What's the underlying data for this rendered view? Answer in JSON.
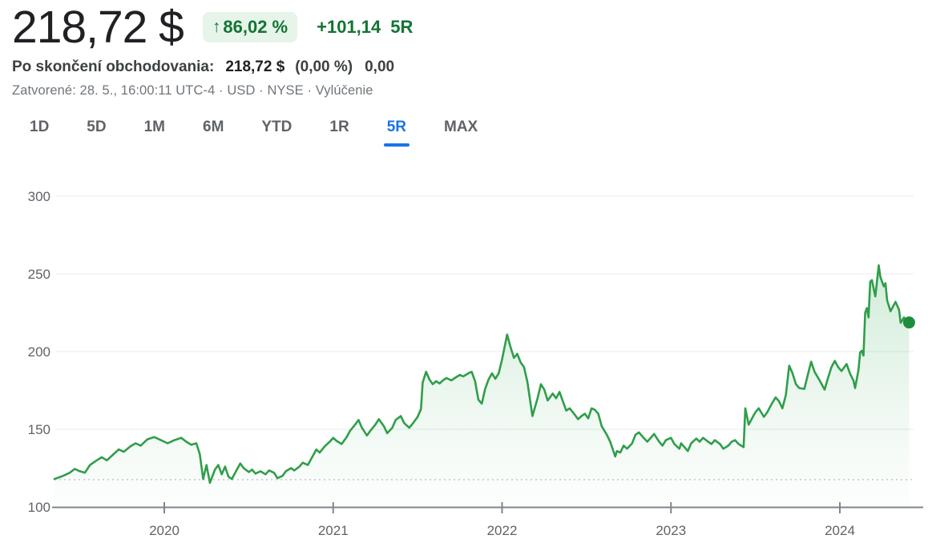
{
  "header": {
    "price": "218,72 $",
    "up_arrow": "↑",
    "change_percent_badge": "86,02 %",
    "change_absolute": "+101,14",
    "range_label": "5R",
    "after_hours": {
      "label": "Po skončení obchodovania:",
      "price": "218,72 $",
      "percent": "(0,00 %)",
      "change": "0,00"
    },
    "status_line": "Zatvorené: 28. 5., 16:00:11 UTC-4 · USD · NYSE · Vylúčenie"
  },
  "tabs": [
    {
      "label": "1D",
      "selected": false
    },
    {
      "label": "5D",
      "selected": false
    },
    {
      "label": "1M",
      "selected": false
    },
    {
      "label": "6M",
      "selected": false
    },
    {
      "label": "YTD",
      "selected": false
    },
    {
      "label": "1R",
      "selected": false
    },
    {
      "label": "5R",
      "selected": true
    },
    {
      "label": "MAX",
      "selected": false
    }
  ],
  "colors": {
    "positive_green": "#137333",
    "badge_bg": "#e6f4ea",
    "line_green": "#2f9e4a",
    "dot_green": "#1e8e3e",
    "tab_active_blue": "#1a73e8",
    "grid": "#e9ebee",
    "axis": "#80868b",
    "label_gray": "#5f6368",
    "baseline_dotted": "#c4c9cd"
  },
  "chart_data": {
    "type": "area",
    "title": "",
    "xlabel": "",
    "ylabel": "",
    "legend": false,
    "grid": true,
    "ylim": [
      100,
      300
    ],
    "xlim": [
      2019.35,
      2024.52
    ],
    "y_ticks": [
      100,
      150,
      200,
      250,
      300
    ],
    "x_ticks": [
      2020,
      2021,
      2022,
      2023,
      2024
    ],
    "x_tick_labels": [
      "2020",
      "2021",
      "2022",
      "2023",
      "2024"
    ],
    "baseline_value": 117.58,
    "last_price": 218.72,
    "points": [
      [
        2019.35,
        118
      ],
      [
        2019.4,
        120
      ],
      [
        2019.44,
        122
      ],
      [
        2019.47,
        124.5
      ],
      [
        2019.5,
        123
      ],
      [
        2019.53,
        122
      ],
      [
        2019.56,
        127
      ],
      [
        2019.6,
        130
      ],
      [
        2019.63,
        132
      ],
      [
        2019.66,
        130
      ],
      [
        2019.7,
        134
      ],
      [
        2019.73,
        137
      ],
      [
        2019.76,
        135.5
      ],
      [
        2019.8,
        139
      ],
      [
        2019.83,
        141
      ],
      [
        2019.86,
        139.5
      ],
      [
        2019.9,
        143.5
      ],
      [
        2019.94,
        145
      ],
      [
        2019.98,
        143
      ],
      [
        2020.02,
        141
      ],
      [
        2020.06,
        143
      ],
      [
        2020.1,
        144.5
      ],
      [
        2020.13,
        142
      ],
      [
        2020.16,
        140
      ],
      [
        2020.19,
        141
      ],
      [
        2020.21,
        134
      ],
      [
        2020.23,
        118
      ],
      [
        2020.25,
        127
      ],
      [
        2020.27,
        115.5
      ],
      [
        2020.3,
        124
      ],
      [
        2020.32,
        127
      ],
      [
        2020.34,
        121
      ],
      [
        2020.36,
        126
      ],
      [
        2020.38,
        119.5
      ],
      [
        2020.4,
        118
      ],
      [
        2020.43,
        124
      ],
      [
        2020.45,
        128
      ],
      [
        2020.47,
        125
      ],
      [
        2020.5,
        122.5
      ],
      [
        2020.52,
        124
      ],
      [
        2020.54,
        121.5
      ],
      [
        2020.57,
        123
      ],
      [
        2020.6,
        121
      ],
      [
        2020.62,
        123.5
      ],
      [
        2020.65,
        122
      ],
      [
        2020.67,
        118.5
      ],
      [
        2020.7,
        120
      ],
      [
        2020.72,
        123
      ],
      [
        2020.75,
        125
      ],
      [
        2020.77,
        123.5
      ],
      [
        2020.8,
        126
      ],
      [
        2020.82,
        128.5
      ],
      [
        2020.85,
        127
      ],
      [
        2020.88,
        133
      ],
      [
        2020.9,
        137
      ],
      [
        2020.92,
        135
      ],
      [
        2020.95,
        139
      ],
      [
        2020.98,
        142
      ],
      [
        2021.0,
        144.5
      ],
      [
        2021.02,
        142.5
      ],
      [
        2021.05,
        140.5
      ],
      [
        2021.08,
        145
      ],
      [
        2021.1,
        149
      ],
      [
        2021.13,
        153
      ],
      [
        2021.15,
        156
      ],
      [
        2021.17,
        151
      ],
      [
        2021.2,
        146
      ],
      [
        2021.22,
        149
      ],
      [
        2021.25,
        153
      ],
      [
        2021.27,
        156.5
      ],
      [
        2021.3,
        152
      ],
      [
        2021.32,
        147.5
      ],
      [
        2021.35,
        151
      ],
      [
        2021.37,
        156
      ],
      [
        2021.4,
        158.5
      ],
      [
        2021.42,
        154
      ],
      [
        2021.45,
        151
      ],
      [
        2021.47,
        153.5
      ],
      [
        2021.5,
        158
      ],
      [
        2021.52,
        163
      ],
      [
        2021.53,
        180
      ],
      [
        2021.55,
        187
      ],
      [
        2021.57,
        182
      ],
      [
        2021.59,
        179
      ],
      [
        2021.61,
        181
      ],
      [
        2021.63,
        179.5
      ],
      [
        2021.65,
        181.5
      ],
      [
        2021.67,
        183
      ],
      [
        2021.7,
        181.5
      ],
      [
        2021.72,
        183
      ],
      [
        2021.75,
        185
      ],
      [
        2021.77,
        184
      ],
      [
        2021.8,
        186
      ],
      [
        2021.82,
        187
      ],
      [
        2021.84,
        181
      ],
      [
        2021.86,
        169
      ],
      [
        2021.88,
        166.5
      ],
      [
        2021.9,
        176
      ],
      [
        2021.92,
        182
      ],
      [
        2021.94,
        186
      ],
      [
        2021.96,
        182.5
      ],
      [
        2021.98,
        186
      ],
      [
        2022.0,
        195
      ],
      [
        2022.03,
        211
      ],
      [
        2022.05,
        203
      ],
      [
        2022.07,
        196
      ],
      [
        2022.09,
        198.5
      ],
      [
        2022.11,
        193
      ],
      [
        2022.13,
        190
      ],
      [
        2022.15,
        180.5
      ],
      [
        2022.18,
        158.5
      ],
      [
        2022.21,
        170
      ],
      [
        2022.23,
        179
      ],
      [
        2022.25,
        175.5
      ],
      [
        2022.27,
        168.5
      ],
      [
        2022.3,
        173
      ],
      [
        2022.32,
        170
      ],
      [
        2022.34,
        174
      ],
      [
        2022.36,
        168
      ],
      [
        2022.38,
        162
      ],
      [
        2022.4,
        163.5
      ],
      [
        2022.43,
        159.5
      ],
      [
        2022.45,
        156.5
      ],
      [
        2022.47,
        158.5
      ],
      [
        2022.49,
        160
      ],
      [
        2022.51,
        157
      ],
      [
        2022.53,
        163.5
      ],
      [
        2022.55,
        162.5
      ],
      [
        2022.57,
        160
      ],
      [
        2022.59,
        152
      ],
      [
        2022.62,
        146.5
      ],
      [
        2022.64,
        142
      ],
      [
        2022.67,
        132.5
      ],
      [
        2022.68,
        136
      ],
      [
        2022.7,
        135
      ],
      [
        2022.72,
        139.5
      ],
      [
        2022.74,
        137.5
      ],
      [
        2022.77,
        141
      ],
      [
        2022.79,
        146.5
      ],
      [
        2022.81,
        148
      ],
      [
        2022.83,
        145.5
      ],
      [
        2022.86,
        142
      ],
      [
        2022.88,
        144.5
      ],
      [
        2022.9,
        147
      ],
      [
        2022.93,
        142
      ],
      [
        2022.95,
        139.5
      ],
      [
        2022.97,
        143
      ],
      [
        2023.0,
        144.5
      ],
      [
        2023.02,
        140.5
      ],
      [
        2023.05,
        137.5
      ],
      [
        2023.06,
        141
      ],
      [
        2023.08,
        138.5
      ],
      [
        2023.1,
        136
      ],
      [
        2023.12,
        141
      ],
      [
        2023.15,
        144
      ],
      [
        2023.17,
        142
      ],
      [
        2023.19,
        144.5
      ],
      [
        2023.22,
        142
      ],
      [
        2023.24,
        140.5
      ],
      [
        2023.26,
        143
      ],
      [
        2023.29,
        140.5
      ],
      [
        2023.31,
        137.5
      ],
      [
        2023.34,
        139.5
      ],
      [
        2023.36,
        142
      ],
      [
        2023.38,
        143
      ],
      [
        2023.4,
        140.5
      ],
      [
        2023.43,
        138.5
      ],
      [
        2023.44,
        163.5
      ],
      [
        2023.46,
        153
      ],
      [
        2023.48,
        157
      ],
      [
        2023.5,
        161
      ],
      [
        2023.52,
        163.5
      ],
      [
        2023.55,
        158
      ],
      [
        2023.57,
        161
      ],
      [
        2023.6,
        167
      ],
      [
        2023.62,
        170.5
      ],
      [
        2023.64,
        168
      ],
      [
        2023.66,
        163.5
      ],
      [
        2023.68,
        172
      ],
      [
        2023.7,
        191
      ],
      [
        2023.72,
        186
      ],
      [
        2023.74,
        179
      ],
      [
        2023.76,
        176.5
      ],
      [
        2023.79,
        176
      ],
      [
        2023.81,
        185
      ],
      [
        2023.83,
        193.5
      ],
      [
        2023.85,
        187
      ],
      [
        2023.88,
        181.5
      ],
      [
        2023.91,
        175.5
      ],
      [
        2023.93,
        183
      ],
      [
        2023.95,
        190
      ],
      [
        2023.97,
        194
      ],
      [
        2023.99,
        190
      ],
      [
        2024.01,
        187.5
      ],
      [
        2024.04,
        192
      ],
      [
        2024.06,
        186
      ],
      [
        2024.08,
        181.5
      ],
      [
        2024.09,
        176.5
      ],
      [
        2024.11,
        188
      ],
      [
        2024.12,
        199.5
      ],
      [
        2024.13,
        200.5
      ],
      [
        2024.14,
        197.5
      ],
      [
        2024.15,
        225
      ],
      [
        2024.16,
        228
      ],
      [
        2024.17,
        222
      ],
      [
        2024.18,
        245
      ],
      [
        2024.19,
        246
      ],
      [
        2024.21,
        235.5
      ],
      [
        2024.23,
        255.5
      ],
      [
        2024.24,
        248
      ],
      [
        2024.26,
        242
      ],
      [
        2024.27,
        244
      ],
      [
        2024.28,
        233
      ],
      [
        2024.3,
        226
      ],
      [
        2024.32,
        230
      ],
      [
        2024.33,
        232
      ],
      [
        2024.35,
        227
      ],
      [
        2024.36,
        218.5
      ],
      [
        2024.38,
        222
      ],
      [
        2024.39,
        217.5
      ],
      [
        2024.41,
        218.72
      ]
    ]
  }
}
